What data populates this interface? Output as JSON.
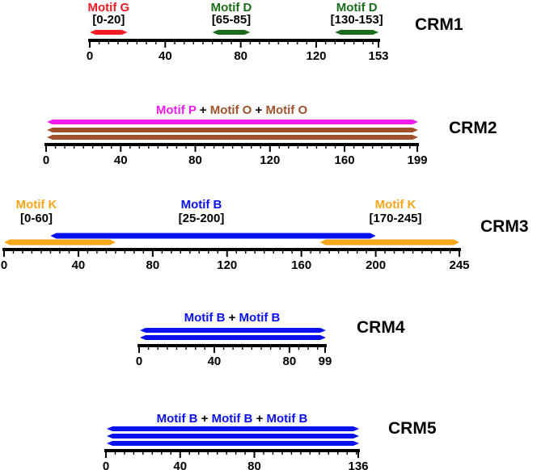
{
  "colors": {
    "red": "#ee1c24",
    "green": "#1a6b1a",
    "magenta": "#ee1cee",
    "brown": "#a0522d",
    "blue": "#0a10ee",
    "orange": "#f5a61b",
    "axis": "#000000"
  },
  "crms": [
    {
      "id": "crm1",
      "name": "CRM1",
      "length": 153,
      "ticks": [
        "0",
        "40",
        "80",
        "120",
        "153"
      ],
      "tick_values": [
        0,
        40,
        80,
        120,
        153
      ],
      "segments": [
        {
          "motif": "Motif G",
          "range": "[0-20]",
          "start": 0,
          "end": 20,
          "color": "red"
        },
        {
          "motif": "Motif D",
          "range": "[65-85]",
          "start": 65,
          "end": 85,
          "color": "green"
        },
        {
          "motif": "Motif D",
          "range": "[130-153]",
          "start": 130,
          "end": 153,
          "color": "green"
        }
      ]
    },
    {
      "id": "crm2",
      "name": "CRM2",
      "length": 199,
      "ticks": [
        "0",
        "40",
        "80",
        "120",
        "160",
        "199"
      ],
      "tick_values": [
        0,
        40,
        80,
        120,
        160,
        199
      ],
      "stack_label": [
        {
          "text": "Motif P",
          "color": "magenta"
        },
        {
          "text": " + ",
          "color": "axis"
        },
        {
          "text": "Motif O",
          "color": "brown"
        },
        {
          "text": " + ",
          "color": "axis"
        },
        {
          "text": "Motif O",
          "color": "brown"
        }
      ],
      "stack": [
        {
          "motif": "Motif P",
          "start": 0,
          "end": 199,
          "color": "magenta"
        },
        {
          "motif": "Motif O",
          "start": 0,
          "end": 199,
          "color": "brown"
        },
        {
          "motif": "Motif O",
          "start": 0,
          "end": 199,
          "color": "brown"
        }
      ]
    },
    {
      "id": "crm3",
      "name": "CRM3",
      "length": 245,
      "ticks": [
        "0",
        "40",
        "80",
        "120",
        "160",
        "200",
        "245"
      ],
      "tick_values": [
        0,
        40,
        80,
        120,
        160,
        200,
        245
      ],
      "segments": [
        {
          "motif": "Motif K",
          "range": "[0-60]",
          "start": 0,
          "end": 60,
          "color": "orange"
        },
        {
          "motif": "Motif B",
          "range": "[25-200]",
          "start": 25,
          "end": 200,
          "color": "blue"
        },
        {
          "motif": "Motif K",
          "range": "[170-245]",
          "start": 170,
          "end": 245,
          "color": "orange"
        }
      ]
    },
    {
      "id": "crm4",
      "name": "CRM4",
      "length": 99,
      "ticks": [
        "0",
        "40",
        "80",
        "99"
      ],
      "tick_values": [
        0,
        40,
        80,
        99
      ],
      "stack_label": [
        {
          "text": "Motif B",
          "color": "blue"
        },
        {
          "text": " + ",
          "color": "axis"
        },
        {
          "text": "Motif B",
          "color": "blue"
        }
      ],
      "stack": [
        {
          "motif": "Motif B",
          "start": 0,
          "end": 99,
          "color": "blue"
        },
        {
          "motif": "Motif B",
          "start": 0,
          "end": 99,
          "color": "blue"
        }
      ]
    },
    {
      "id": "crm5",
      "name": "CRM5",
      "length": 136,
      "ticks": [
        "0",
        "40",
        "80",
        "136"
      ],
      "tick_values": [
        0,
        40,
        80,
        136
      ],
      "stack_label": [
        {
          "text": "Motif B",
          "color": "blue"
        },
        {
          "text": " + ",
          "color": "axis"
        },
        {
          "text": "Motif B",
          "color": "blue"
        },
        {
          "text": " + ",
          "color": "axis"
        },
        {
          "text": "Motif B",
          "color": "blue"
        }
      ],
      "stack": [
        {
          "motif": "Motif B",
          "start": 0,
          "end": 136,
          "color": "blue"
        },
        {
          "motif": "Motif B",
          "start": 0,
          "end": 136,
          "color": "blue"
        },
        {
          "motif": "Motif B",
          "start": 0,
          "end": 136,
          "color": "blue"
        }
      ]
    }
  ]
}
